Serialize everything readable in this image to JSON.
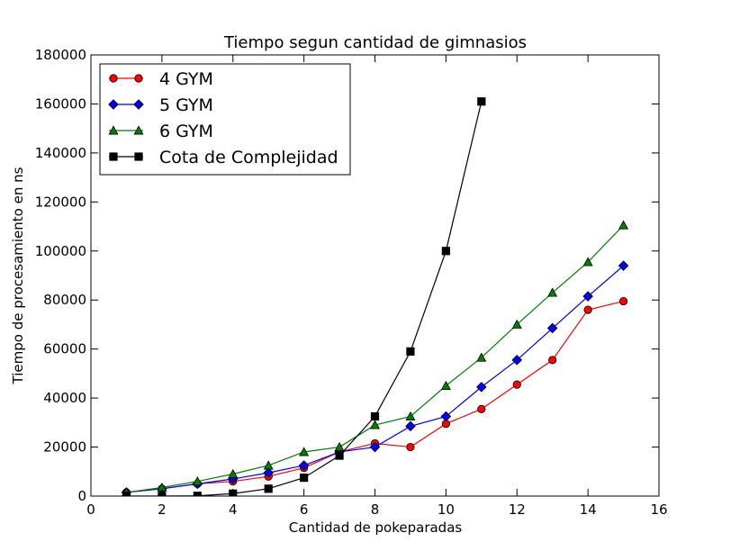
{
  "chart_data": {
    "type": "line",
    "title": "Tiempo segun cantidad de gimnasios",
    "xlabel": "Cantidad de pokeparadas",
    "ylabel": "Tiempo de procesamiento en ns",
    "xlim": [
      0,
      16
    ],
    "ylim": [
      0,
      180000
    ],
    "xticks": [
      0,
      2,
      4,
      6,
      8,
      10,
      12,
      14,
      16
    ],
    "yticks": [
      0,
      20000,
      40000,
      60000,
      80000,
      100000,
      120000,
      140000,
      160000,
      180000
    ],
    "grid": false,
    "legend_position": "top-left",
    "series": [
      {
        "name": "4 GYM",
        "color": "#ff0000",
        "marker": "circle",
        "x": [
          1,
          2,
          3,
          4,
          5,
          6,
          7,
          8,
          9,
          10,
          11,
          12,
          13,
          14,
          15
        ],
        "y": [
          1500,
          3000,
          5000,
          6000,
          8000,
          11500,
          18000,
          21500,
          20000,
          29500,
          35500,
          45500,
          55500,
          76000,
          79500
        ]
      },
      {
        "name": "5 GYM",
        "color": "#0000ff",
        "marker": "diamond",
        "x": [
          1,
          2,
          3,
          4,
          5,
          6,
          7,
          8,
          9,
          10,
          11,
          12,
          13,
          14,
          15
        ],
        "y": [
          1500,
          3000,
          5000,
          7000,
          9500,
          12500,
          18000,
          20000,
          28500,
          32500,
          44500,
          55500,
          68500,
          81500,
          94000
        ]
      },
      {
        "name": "6 GYM",
        "color": "#007f00",
        "marker": "triangle",
        "x": [
          1,
          2,
          3,
          4,
          5,
          6,
          7,
          8,
          9,
          10,
          11,
          12,
          13,
          14,
          15
        ],
        "y": [
          1500,
          3500,
          6000,
          9000,
          12500,
          18000,
          20000,
          29000,
          32500,
          45000,
          56500,
          70000,
          83000,
          95500,
          110500
        ]
      },
      {
        "name": "Cota de Complejidad",
        "color": "#000000",
        "marker": "square",
        "x": [
          1,
          2,
          3,
          4,
          5,
          6,
          7,
          8,
          9,
          10,
          11
        ],
        "y": [
          0,
          0,
          100,
          1000,
          3000,
          7500,
          16500,
          32500,
          59000,
          100000,
          161000
        ]
      }
    ]
  }
}
